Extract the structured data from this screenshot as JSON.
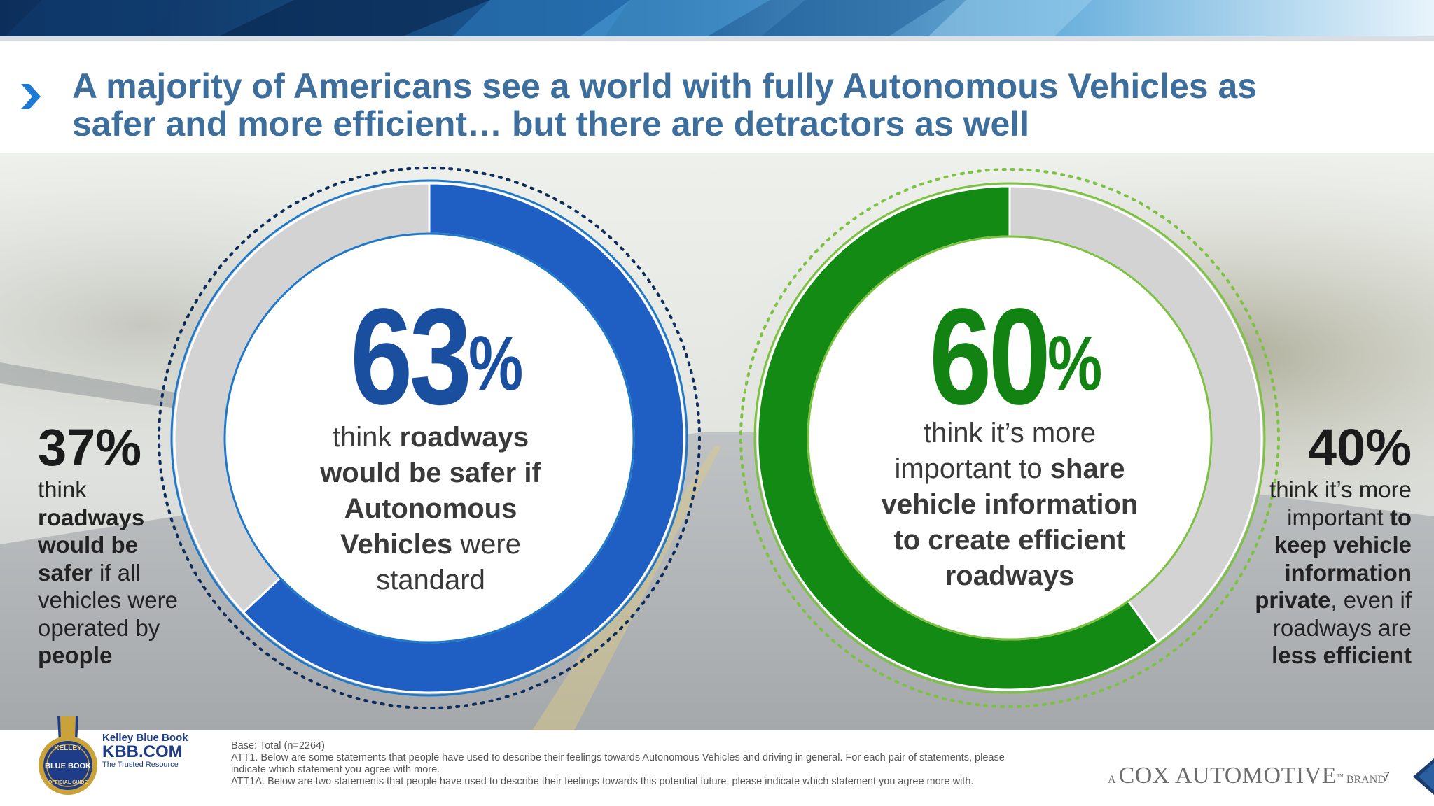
{
  "header": {
    "title_line1": "A majority of Americans see a world with fully Autonomous Vehicles as",
    "title_line2": "safer and more efficient… but there are detractors as well",
    "title_color": "#3e6f9c"
  },
  "chart_data": [
    {
      "type": "pie",
      "style": "donut",
      "slices": [
        {
          "label": "think roadways would be safer if Autonomous Vehicles were standard",
          "value": 63,
          "color": "#1f5fc4"
        },
        {
          "label": "think roadways would be safer if all vehicles were operated by people",
          "value": 37,
          "color": "#d3d3d3"
        }
      ]
    },
    {
      "type": "pie",
      "style": "donut",
      "slices": [
        {
          "label": "think it's more important to share vehicle information to create efficient roadways",
          "value": 60,
          "color": "#138a13"
        },
        {
          "label": "think it's more important to keep vehicle information private, even if roadways are less efficient",
          "value": 40,
          "color": "#d3d3d3"
        }
      ]
    }
  ],
  "donut1": {
    "number": "63",
    "percent_sign": "%",
    "number_color": "#1a4fa0",
    "text_pre": "think ",
    "text_b1": "roadways would be safer if Autonomous Vehicles",
    "text_mid": " were standard"
  },
  "donut2": {
    "number": "60",
    "percent_sign": "%",
    "number_color": "#128212",
    "text_pre": "think it’s more important to ",
    "text_b1": "share vehicle information to create efficient roadways"
  },
  "left_stat": {
    "value": "37%",
    "t1": "think",
    "b1": "roadways would be safer",
    "t2": " if all vehicles were operated by ",
    "b2": "people"
  },
  "right_stat": {
    "value": "40%",
    "t1": "think it’s more important ",
    "b1": "to keep vehicle information private",
    "t2": ", even if roadways are ",
    "b2": "less efficient"
  },
  "footer": {
    "logo_lines": [
      "KELLEY",
      "BLUE BOOK",
      "OFFICIAL GUIDE"
    ],
    "kbb_line1": "Kelley Blue Book",
    "kbb_line2": "KBB.COM",
    "kbb_line3": "The Trusted Resource",
    "base_lines": [
      "Base: Total (n=2264)",
      "ATT1. Below are some statements that people have used to describe their feelings towards Autonomous Vehicles and driving in general. For each pair of statements, please indicate which statement you agree with more.",
      "ATT1A. Below are two statements that people have used to describe their feelings towards this potential future, please indicate which statement you agree more with."
    ],
    "cox_a": "A",
    "cox_name": "COX AUTOMOTIVE",
    "cox_tm": "™",
    "cox_brand": "BRAND",
    "page_number": "7"
  }
}
